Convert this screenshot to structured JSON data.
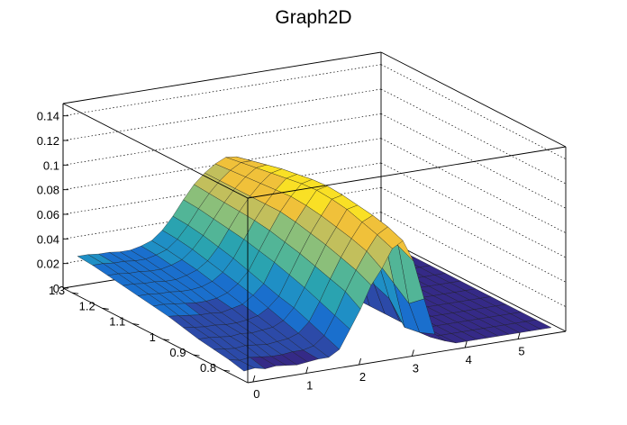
{
  "chart_data": {
    "type": "surface",
    "title": "Graph2D",
    "xlabel": "",
    "ylabel": "",
    "zlabel": "",
    "x_ticks": [
      "0",
      "1",
      "2",
      "3",
      "4",
      "5"
    ],
    "y_ticks": [
      "0.8",
      "0.9",
      "1",
      "1.1",
      "1.2",
      "1.3"
    ],
    "z_ticks": [
      "0",
      "0.02",
      "0.04",
      "0.06",
      "0.08",
      "0.1",
      "0.12",
      "0.14"
    ],
    "xlim": [
      -0.1,
      5.9
    ],
    "ylim": [
      0.72,
      1.33
    ],
    "zlim": [
      0,
      0.15
    ],
    "x_grid": [
      0,
      0.2,
      0.4,
      0.6,
      0.8,
      1.0,
      1.2,
      1.4,
      1.6,
      1.8,
      2.0,
      2.2,
      2.4,
      2.6,
      2.8,
      3.0,
      3.2,
      3.4,
      3.6,
      3.8,
      4.0,
      4.2,
      4.4,
      4.6,
      4.8,
      5.0,
      5.2,
      5.4,
      5.6,
      5.8
    ],
    "y_grid": [
      0.75,
      0.8,
      0.85,
      0.9,
      0.95,
      1.0,
      1.05,
      1.1,
      1.15,
      1.2,
      1.25,
      1.3
    ],
    "z": [
      [
        0.005,
        0.006,
        0.004,
        0.005,
        0.004,
        0.003,
        0.004,
        0.005,
        0.005,
        0.01,
        0.025,
        0.04,
        0.058,
        0.07,
        0.085,
        0.09,
        0.072,
        0.04,
        0.01,
        0.003,
        0.0,
        0.0,
        0.0,
        0.0,
        0.0,
        0.0,
        0.0,
        0.0,
        0.0,
        0.0
      ],
      [
        0.008,
        0.006,
        0.007,
        0.006,
        0.005,
        0.005,
        0.006,
        0.006,
        0.008,
        0.015,
        0.03,
        0.048,
        0.064,
        0.078,
        0.09,
        0.095,
        0.078,
        0.03,
        0.005,
        0.0,
        0.0,
        0.0,
        0.0,
        0.0,
        0.0,
        0.0,
        0.0,
        0.0,
        0.0,
        0.0
      ],
      [
        0.01,
        0.009,
        0.008,
        0.009,
        0.008,
        0.007,
        0.008,
        0.009,
        0.012,
        0.02,
        0.035,
        0.052,
        0.068,
        0.082,
        0.094,
        0.098,
        0.082,
        0.04,
        0.003,
        0.0,
        0.0,
        0.0,
        0.0,
        0.0,
        0.0,
        0.0,
        0.0,
        0.0,
        0.0,
        0.0
      ],
      [
        0.012,
        0.012,
        0.011,
        0.01,
        0.011,
        0.01,
        0.011,
        0.012,
        0.016,
        0.025,
        0.04,
        0.056,
        0.072,
        0.085,
        0.098,
        0.1,
        0.086,
        0.05,
        0.02,
        0.0,
        0.0,
        0.0,
        0.0,
        0.0,
        0.0,
        0.0,
        0.0,
        0.0,
        0.0,
        0.0
      ],
      [
        0.015,
        0.014,
        0.013,
        0.013,
        0.012,
        0.012,
        0.013,
        0.015,
        0.02,
        0.028,
        0.044,
        0.06,
        0.075,
        0.088,
        0.1,
        0.102,
        0.088,
        0.055,
        0.025,
        0.0,
        0.0,
        0.0,
        0.0,
        0.0,
        0.0,
        0.0,
        0.0,
        0.0,
        0.0,
        0.0
      ],
      [
        0.018,
        0.017,
        0.016,
        0.015,
        0.015,
        0.014,
        0.016,
        0.018,
        0.024,
        0.032,
        0.048,
        0.063,
        0.078,
        0.09,
        0.101,
        0.103,
        0.09,
        0.06,
        0.03,
        0.0,
        0.0,
        0.0,
        0.0,
        0.0,
        0.0,
        0.0,
        0.0,
        0.0,
        0.0,
        0.0
      ],
      [
        0.02,
        0.02,
        0.019,
        0.018,
        0.017,
        0.017,
        0.018,
        0.021,
        0.027,
        0.036,
        0.051,
        0.066,
        0.08,
        0.091,
        0.1,
        0.102,
        0.09,
        0.062,
        0.03,
        0.0,
        0.0,
        0.0,
        0.0,
        0.0,
        0.0,
        0.0,
        0.0,
        0.0,
        0.0,
        0.0
      ],
      [
        0.022,
        0.022,
        0.021,
        0.021,
        0.02,
        0.02,
        0.021,
        0.024,
        0.03,
        0.04,
        0.054,
        0.068,
        0.08,
        0.09,
        0.098,
        0.1,
        0.088,
        0.06,
        0.03,
        0.0,
        0.0,
        0.0,
        0.0,
        0.0,
        0.0,
        0.0,
        0.0,
        0.0,
        0.0,
        0.0
      ],
      [
        0.024,
        0.024,
        0.023,
        0.023,
        0.022,
        0.022,
        0.024,
        0.027,
        0.033,
        0.043,
        0.056,
        0.069,
        0.08,
        0.089,
        0.096,
        0.098,
        0.086,
        0.058,
        0.028,
        0.0,
        0.0,
        0.0,
        0.0,
        0.0,
        0.0,
        0.0,
        0.0,
        0.0,
        0.0,
        0.0
      ],
      [
        0.026,
        0.026,
        0.025,
        0.025,
        0.024,
        0.024,
        0.026,
        0.029,
        0.036,
        0.046,
        0.058,
        0.07,
        0.08,
        0.088,
        0.094,
        0.095,
        0.083,
        0.055,
        0.025,
        0.0,
        0.0,
        0.0,
        0.0,
        0.0,
        0.0,
        0.0,
        0.0,
        0.0,
        0.0,
        0.0
      ],
      [
        0.028,
        0.028,
        0.027,
        0.027,
        0.026,
        0.026,
        0.028,
        0.031,
        0.038,
        0.048,
        0.06,
        0.071,
        0.08,
        0.087,
        0.092,
        0.092,
        0.08,
        0.052,
        0.02,
        0.0,
        0.0,
        0.0,
        0.0,
        0.0,
        0.0,
        0.0,
        0.0,
        0.0,
        0.0,
        0.0
      ],
      [
        0.029,
        0.029,
        0.028,
        0.028,
        0.027,
        0.027,
        0.029,
        0.032,
        0.039,
        0.049,
        0.061,
        0.072,
        0.08,
        0.086,
        0.09,
        0.089,
        0.077,
        0.048,
        0.015,
        0.0,
        0.0,
        0.0,
        0.0,
        0.0,
        0.0,
        0.0,
        0.0,
        0.0,
        0.0,
        0.0
      ]
    ],
    "palette": [
      "#352a87",
      "#2c4aa8",
      "#1a6fcd",
      "#1f8fc5",
      "#2aa3b0",
      "#52b597",
      "#8bbf7a",
      "#c2bf5c",
      "#f0c13a",
      "#f9e025"
    ],
    "grid": true,
    "legend": "none"
  }
}
